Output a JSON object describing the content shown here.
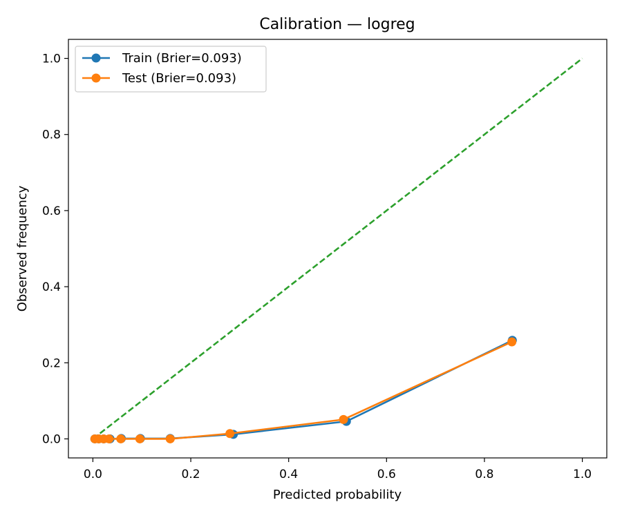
{
  "chart_data": {
    "type": "line",
    "title": "Calibration — logreg",
    "xlabel": "Predicted probability",
    "ylabel": "Observed frequency",
    "xlim": [
      -0.05,
      1.05
    ],
    "ylim": [
      -0.05,
      1.05
    ],
    "xticks": [
      0.0,
      0.2,
      0.4,
      0.6,
      0.8,
      1.0
    ],
    "yticks": [
      0.0,
      0.2,
      0.4,
      0.6,
      0.8,
      1.0
    ],
    "xtick_labels": [
      "0.0",
      "0.2",
      "0.4",
      "0.6",
      "0.8",
      "1.0"
    ],
    "ytick_labels": [
      "0.0",
      "0.2",
      "0.4",
      "0.6",
      "0.8",
      "1.0"
    ],
    "grid": false,
    "legend": "upper-left",
    "series": [
      {
        "name": "Train (Brier=0.093)",
        "color": "#1f77b4",
        "marker": "circle",
        "x": [
          0.004,
          0.012,
          0.022,
          0.035,
          0.058,
          0.097,
          0.158,
          0.287,
          0.518,
          0.857
        ],
        "y": [
          0.0,
          0.0,
          0.0,
          0.0,
          0.001,
          0.001,
          0.001,
          0.012,
          0.046,
          0.259
        ]
      },
      {
        "name": "Test (Brier=0.093)",
        "color": "#ff7f0e",
        "marker": "circle",
        "x": [
          0.004,
          0.012,
          0.022,
          0.033,
          0.057,
          0.096,
          0.158,
          0.28,
          0.512,
          0.856
        ],
        "y": [
          0.0,
          0.0,
          0.0,
          0.0,
          0.0,
          0.0,
          0.0,
          0.014,
          0.051,
          0.255
        ]
      }
    ],
    "reference_line": {
      "x": [
        0.0,
        1.0
      ],
      "y": [
        0.0,
        1.0
      ],
      "color": "#2ca02c",
      "style": "dashed"
    }
  }
}
